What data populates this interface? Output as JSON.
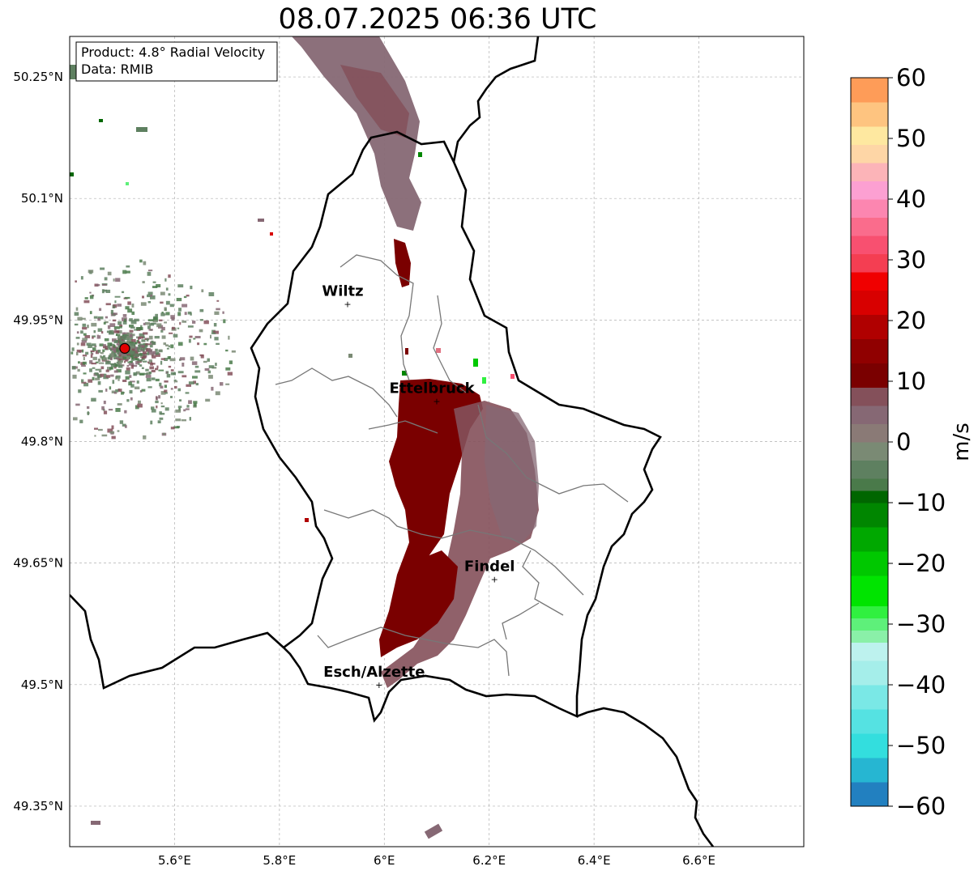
{
  "title": "08.07.2025 06:36 UTC",
  "info_box": {
    "product": "Product: 4.8° Radial Velocity",
    "source": "Data: RMIB"
  },
  "axes": {
    "lon_ticks": [
      {
        "value": 5.6,
        "label": "5.6°E"
      },
      {
        "value": 5.8,
        "label": "5.8°E"
      },
      {
        "value": 6.0,
        "label": "6°E"
      },
      {
        "value": 6.2,
        "label": "6.2°E"
      },
      {
        "value": 6.4,
        "label": "6.4°E"
      },
      {
        "value": 6.6,
        "label": "6.6°E"
      }
    ],
    "lat_ticks": [
      {
        "value": 50.25,
        "label": "50.25°N"
      },
      {
        "value": 50.1,
        "label": "50.1°N"
      },
      {
        "value": 49.95,
        "label": "49.95°N"
      },
      {
        "value": 49.8,
        "label": "49.8°N"
      },
      {
        "value": 49.65,
        "label": "49.65°N"
      },
      {
        "value": 49.5,
        "label": "49.5°N"
      },
      {
        "value": 49.35,
        "label": "49.35°N"
      }
    ],
    "lon_range": [
      5.4,
      6.8
    ],
    "lat_range": [
      49.3,
      50.3
    ],
    "grid": true
  },
  "cities": [
    {
      "name": "Wiltz",
      "lon": 5.93,
      "lat": 49.97
    },
    {
      "name": "Ettelbruck",
      "lon": 6.1,
      "lat": 49.85
    },
    {
      "name": "Findel",
      "lon": 6.21,
      "lat": 49.63
    },
    {
      "name": "Esch/Alzette",
      "lon": 5.99,
      "lat": 49.5
    }
  ],
  "radar_site": {
    "lon": 5.505,
    "lat": 49.915
  },
  "colorbar": {
    "unit": "m/s",
    "min": -60,
    "max": 60,
    "ticks": [
      {
        "value": 60,
        "label": "60"
      },
      {
        "value": 50,
        "label": "50"
      },
      {
        "value": 40,
        "label": "40"
      },
      {
        "value": 30,
        "label": "30"
      },
      {
        "value": 20,
        "label": "20"
      },
      {
        "value": 10,
        "label": "10"
      },
      {
        "value": 0,
        "label": "0"
      },
      {
        "value": -10,
        "label": "−10"
      },
      {
        "value": -20,
        "label": "−20"
      },
      {
        "value": -30,
        "label": "−30"
      },
      {
        "value": -40,
        "label": "−40"
      },
      {
        "value": -50,
        "label": "−50"
      },
      {
        "value": -60,
        "label": "−60"
      }
    ],
    "stops": [
      {
        "from": -60,
        "to": -56,
        "color": "#2280c0"
      },
      {
        "from": -56,
        "to": -52,
        "color": "#26b6d2"
      },
      {
        "from": -52,
        "to": -48,
        "color": "#33dede"
      },
      {
        "from": -48,
        "to": -44,
        "color": "#55e2e2"
      },
      {
        "from": -44,
        "to": -40,
        "color": "#7ae8e6"
      },
      {
        "from": -40,
        "to": -36,
        "color": "#a5eeea"
      },
      {
        "from": -36,
        "to": -33,
        "color": "#bdf2ee"
      },
      {
        "from": -33,
        "to": -31,
        "color": "#8af0a8"
      },
      {
        "from": -31,
        "to": -29,
        "color": "#5ef07a"
      },
      {
        "from": -29,
        "to": -27,
        "color": "#30f040"
      },
      {
        "from": -27,
        "to": -22,
        "color": "#00e400"
      },
      {
        "from": -22,
        "to": -18,
        "color": "#00c800"
      },
      {
        "from": -18,
        "to": -14,
        "color": "#00a800"
      },
      {
        "from": -14,
        "to": -10,
        "color": "#008600"
      },
      {
        "from": -10,
        "to": -8,
        "color": "#006600"
      },
      {
        "from": -8,
        "to": -6,
        "color": "#4a7a4a"
      },
      {
        "from": -6,
        "to": -3,
        "color": "#5e8060"
      },
      {
        "from": -3,
        "to": 0,
        "color": "#7a8a74"
      },
      {
        "from": 0,
        "to": 3,
        "color": "#8a7a76"
      },
      {
        "from": 3,
        "to": 6,
        "color": "#866874"
      },
      {
        "from": 6,
        "to": 9,
        "color": "#84505a"
      },
      {
        "from": 9,
        "to": 13,
        "color": "#7a0000"
      },
      {
        "from": 13,
        "to": 17,
        "color": "#900000"
      },
      {
        "from": 17,
        "to": 21,
        "color": "#b00000"
      },
      {
        "from": 21,
        "to": 25,
        "color": "#d80000"
      },
      {
        "from": 25,
        "to": 28,
        "color": "#f00000"
      },
      {
        "from": 28,
        "to": 31,
        "color": "#f43e52"
      },
      {
        "from": 31,
        "to": 34,
        "color": "#f85070"
      },
      {
        "from": 34,
        "to": 37,
        "color": "#fa6c8c"
      },
      {
        "from": 37,
        "to": 40,
        "color": "#fc86b0"
      },
      {
        "from": 40,
        "to": 43,
        "color": "#fca0d2"
      },
      {
        "from": 43,
        "to": 46,
        "color": "#fcb4b8"
      },
      {
        "from": 46,
        "to": 49,
        "color": "#fed6a6"
      },
      {
        "from": 49,
        "to": 52,
        "color": "#fee8a0"
      },
      {
        "from": 52,
        "to": 56,
        "color": "#fec480"
      },
      {
        "from": 56,
        "to": 60,
        "color": "#fe9c58"
      }
    ]
  }
}
